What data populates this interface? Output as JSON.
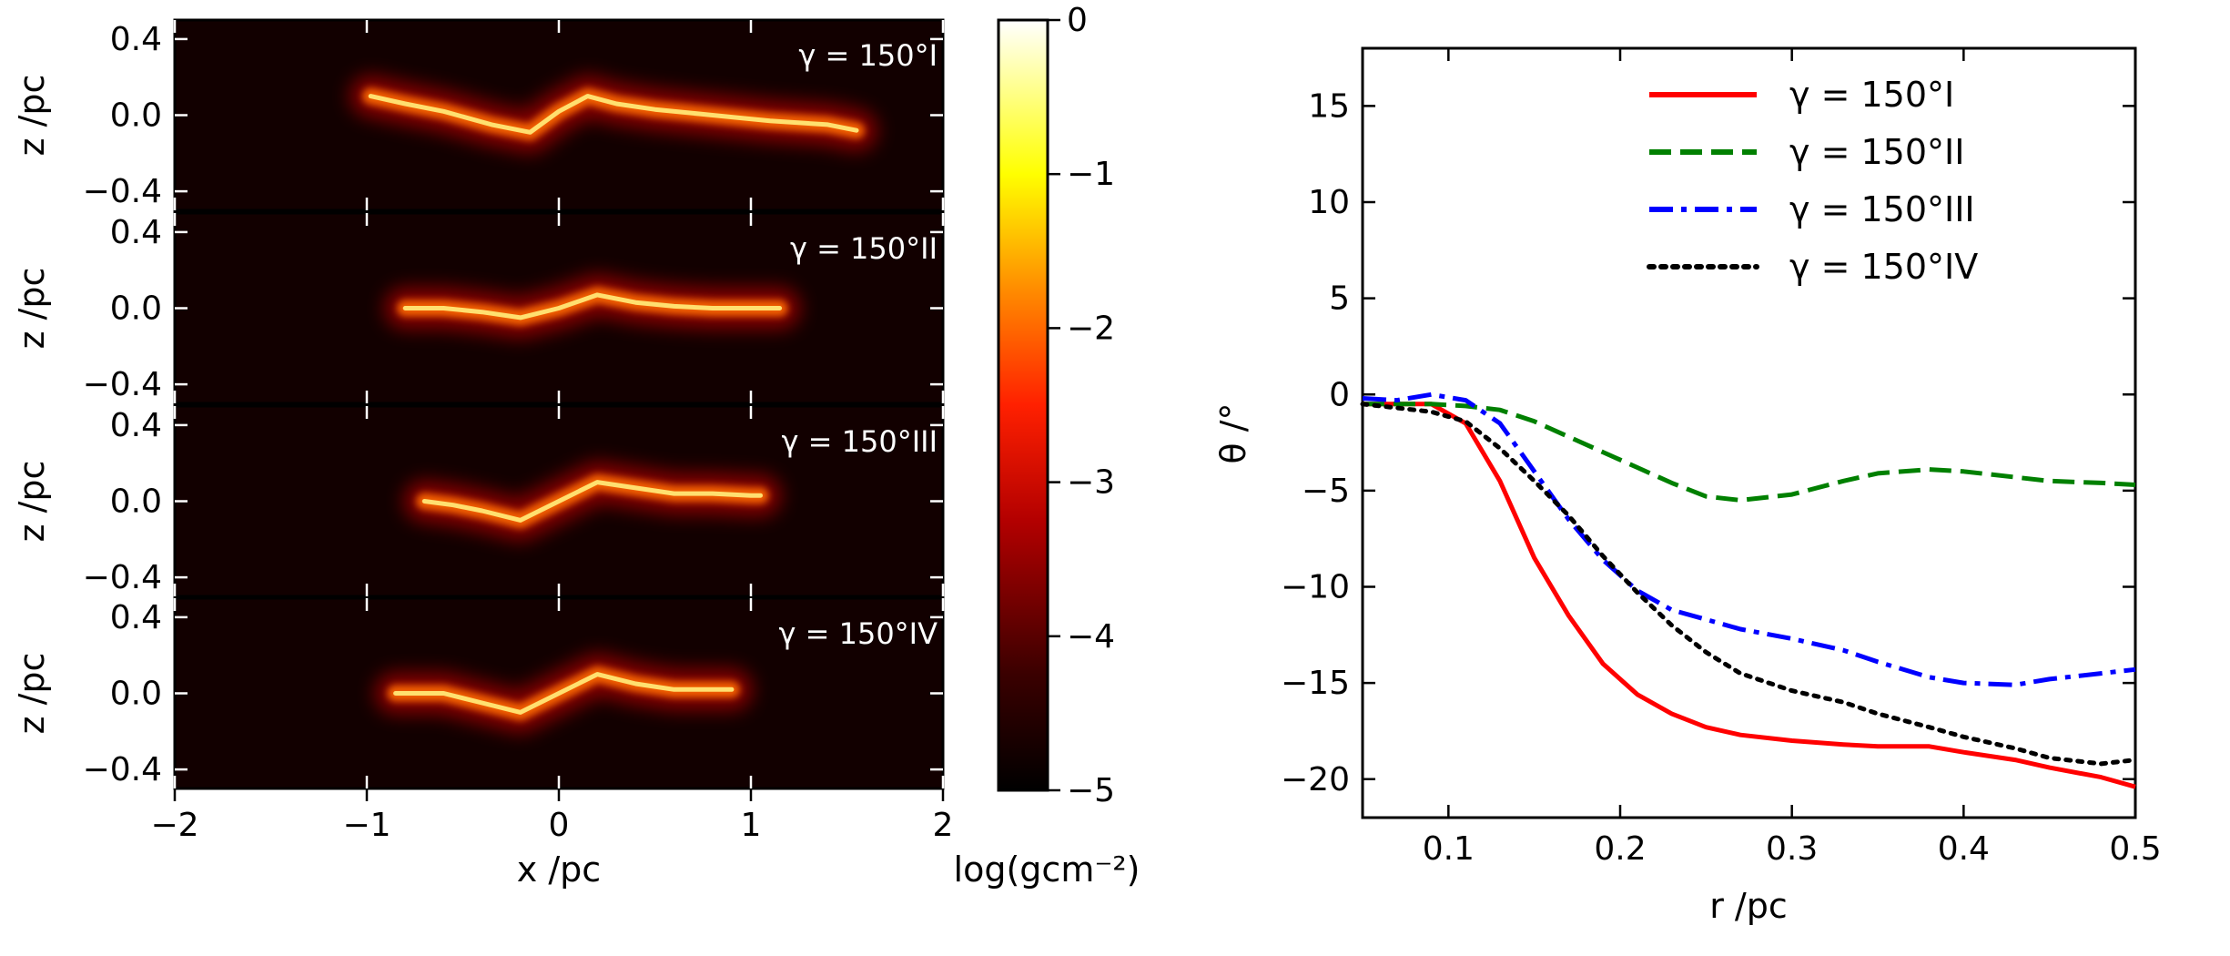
{
  "chart_data": [
    {
      "type": "heatmap",
      "panel_labels": [
        "γ = 150°I",
        "γ = 150°II",
        "γ = 150°III",
        "γ = 150°IV"
      ],
      "xlabel": "x /pc",
      "ylabel": "z /pc",
      "xlim": [
        -2,
        2
      ],
      "ylim": [
        -0.5,
        0.5
      ],
      "xticks": [
        "−2",
        "−1",
        "0",
        "1",
        "2"
      ],
      "yticks": [
        "0.4",
        "0.0",
        "−0.4"
      ],
      "colorbar": {
        "label": "log(gcm⁻²)",
        "range": [
          -5,
          0
        ],
        "ticks": [
          "0",
          "−1",
          "−2",
          "−3",
          "−4",
          "−5"
        ],
        "colormap": "afmhot"
      },
      "filaments": [
        {
          "x": [
            -0.98,
            -0.8,
            -0.6,
            -0.35,
            -0.15,
            0.0,
            0.15,
            0.3,
            0.5,
            0.8,
            1.1,
            1.4,
            1.55
          ],
          "z": [
            0.1,
            0.06,
            0.02,
            -0.05,
            -0.09,
            0.02,
            0.1,
            0.06,
            0.03,
            0.0,
            -0.03,
            -0.05,
            -0.08
          ]
        },
        {
          "x": [
            -0.8,
            -0.6,
            -0.4,
            -0.2,
            0.0,
            0.2,
            0.4,
            0.6,
            0.8,
            1.0,
            1.15
          ],
          "z": [
            0.0,
            0.0,
            -0.02,
            -0.05,
            0.0,
            0.07,
            0.03,
            0.01,
            0.0,
            0.0,
            0.0
          ]
        },
        {
          "x": [
            -0.7,
            -0.55,
            -0.4,
            -0.2,
            0.0,
            0.2,
            0.4,
            0.6,
            0.8,
            1.0,
            1.05
          ],
          "z": [
            0.0,
            -0.02,
            -0.05,
            -0.1,
            0.0,
            0.1,
            0.07,
            0.04,
            0.04,
            0.03,
            0.03
          ]
        },
        {
          "x": [
            -0.85,
            -0.6,
            -0.4,
            -0.2,
            0.0,
            0.2,
            0.4,
            0.6,
            0.8,
            0.9
          ],
          "z": [
            0.0,
            0.0,
            -0.05,
            -0.1,
            0.0,
            0.1,
            0.05,
            0.02,
            0.02,
            0.02
          ]
        }
      ]
    },
    {
      "type": "line",
      "xlabel": "r /pc",
      "ylabel": "θ /°",
      "xlim": [
        0.05,
        0.5
      ],
      "ylim": [
        -22,
        18
      ],
      "xticks": [
        0.1,
        0.2,
        0.3,
        0.4,
        0.5
      ],
      "xtick_labels": [
        "0.1",
        "0.2",
        "0.3",
        "0.4",
        "0.5"
      ],
      "yticks": [
        15,
        10,
        5,
        0,
        -5,
        -10,
        -15,
        -20
      ],
      "ytick_labels": [
        "15",
        "10",
        "5",
        "0",
        "−5",
        "−10",
        "−15",
        "−20"
      ],
      "legend_position": "top-center",
      "series": [
        {
          "name": "γ = 150°I",
          "color": "#ff0000",
          "style": "solid",
          "x": [
            0.05,
            0.07,
            0.09,
            0.11,
            0.13,
            0.15,
            0.17,
            0.19,
            0.21,
            0.23,
            0.25,
            0.27,
            0.3,
            0.33,
            0.35,
            0.38,
            0.4,
            0.43,
            0.45,
            0.48,
            0.5
          ],
          "y": [
            -0.5,
            -0.5,
            -0.5,
            -1.5,
            -4.5,
            -8.5,
            -11.5,
            -14.0,
            -15.6,
            -16.6,
            -17.3,
            -17.7,
            -18.0,
            -18.2,
            -18.3,
            -18.3,
            -18.6,
            -19.0,
            -19.4,
            -19.9,
            -20.4
          ]
        },
        {
          "name": "γ = 150°II",
          "color": "#008000",
          "style": "dashed",
          "x": [
            0.05,
            0.07,
            0.09,
            0.11,
            0.13,
            0.15,
            0.17,
            0.19,
            0.21,
            0.23,
            0.25,
            0.27,
            0.3,
            0.33,
            0.35,
            0.38,
            0.4,
            0.43,
            0.45,
            0.48,
            0.5
          ],
          "y": [
            -0.5,
            -0.5,
            -0.5,
            -0.6,
            -0.8,
            -1.4,
            -2.2,
            -3.0,
            -3.8,
            -4.6,
            -5.3,
            -5.5,
            -5.2,
            -4.5,
            -4.1,
            -3.9,
            -4.0,
            -4.3,
            -4.5,
            -4.6,
            -4.7
          ]
        },
        {
          "name": "γ = 150°III",
          "color": "#0000ff",
          "style": "dashdot",
          "x": [
            0.05,
            0.07,
            0.09,
            0.11,
            0.13,
            0.15,
            0.17,
            0.19,
            0.21,
            0.23,
            0.25,
            0.27,
            0.3,
            0.33,
            0.35,
            0.38,
            0.4,
            0.43,
            0.45,
            0.48,
            0.5
          ],
          "y": [
            -0.2,
            -0.3,
            0.0,
            -0.3,
            -1.5,
            -4.0,
            -6.5,
            -8.6,
            -10.2,
            -11.2,
            -11.7,
            -12.2,
            -12.7,
            -13.3,
            -13.9,
            -14.7,
            -15.0,
            -15.1,
            -14.8,
            -14.5,
            -14.3
          ]
        },
        {
          "name": "γ = 150°IV",
          "color": "#000000",
          "style": "dotted",
          "x": [
            0.05,
            0.07,
            0.09,
            0.11,
            0.13,
            0.15,
            0.17,
            0.19,
            0.21,
            0.23,
            0.25,
            0.27,
            0.3,
            0.33,
            0.35,
            0.38,
            0.4,
            0.43,
            0.45,
            0.48,
            0.5
          ],
          "y": [
            -0.5,
            -0.7,
            -0.9,
            -1.4,
            -2.8,
            -4.5,
            -6.3,
            -8.4,
            -10.3,
            -12.0,
            -13.4,
            -14.5,
            -15.4,
            -16.0,
            -16.6,
            -17.3,
            -17.8,
            -18.4,
            -18.9,
            -19.2,
            -19.0
          ]
        }
      ]
    }
  ]
}
